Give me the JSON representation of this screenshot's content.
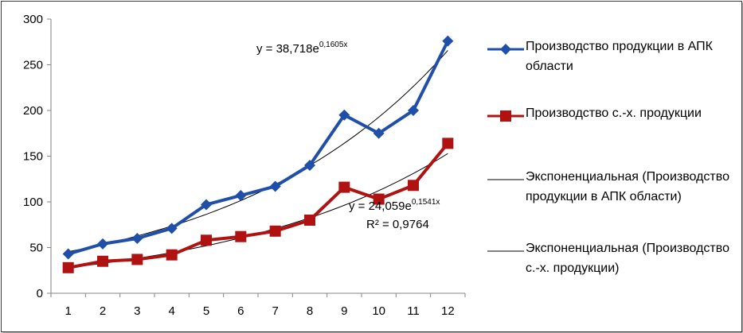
{
  "chart_data": {
    "type": "line",
    "categories": [
      "1",
      "2",
      "3",
      "4",
      "5",
      "6",
      "7",
      "8",
      "9",
      "10",
      "11",
      "12"
    ],
    "ylim": [
      0,
      300
    ],
    "yticks": [
      "0",
      "50",
      "100",
      "150",
      "200",
      "250",
      "300"
    ],
    "grid": false,
    "legend_position": "right",
    "series": [
      {
        "name": "Производство продукции в АПК области",
        "values": [
          43,
          54,
          60,
          71,
          97,
          107,
          117,
          140,
          195,
          175,
          200,
          276
        ],
        "color": "#1f4fa8",
        "marker": "diamond"
      },
      {
        "name": "Производство с.-х. продукции",
        "values": [
          28,
          35,
          37,
          42,
          58,
          62,
          68,
          80,
          116,
          103,
          118,
          164
        ],
        "color": "#b01212",
        "marker": "square"
      }
    ],
    "trendlines": [
      {
        "name": "Экспоненциальная (Производство продукции в АПК области)",
        "a": 38.718,
        "b": 0.1605,
        "equation_prefix": "y = 38,718e",
        "equation_exp": "0,1605x"
      },
      {
        "name": "Экспоненциальная (Производство с.-х. продукции)",
        "a": 24.059,
        "b": 0.1541,
        "equation_prefix": "y = 24,059e",
        "equation_exp": "0,1541x",
        "r2": "R² = 0,9764"
      }
    ]
  },
  "legend": {
    "items": [
      {
        "label": "Производство продукции в АПК области",
        "kind": "diamond-line",
        "color": "#1f4fa8"
      },
      {
        "label": "Производство с.-х. продукции",
        "kind": "square-line",
        "color": "#b01212"
      },
      {
        "label": "Экспоненциальная (Производство продукции в АПК области)",
        "kind": "thin-line",
        "color": "#000000"
      },
      {
        "label": "Экспоненциальная (Производство с.-х. продукции)",
        "kind": "thin-line",
        "color": "#000000"
      }
    ]
  }
}
